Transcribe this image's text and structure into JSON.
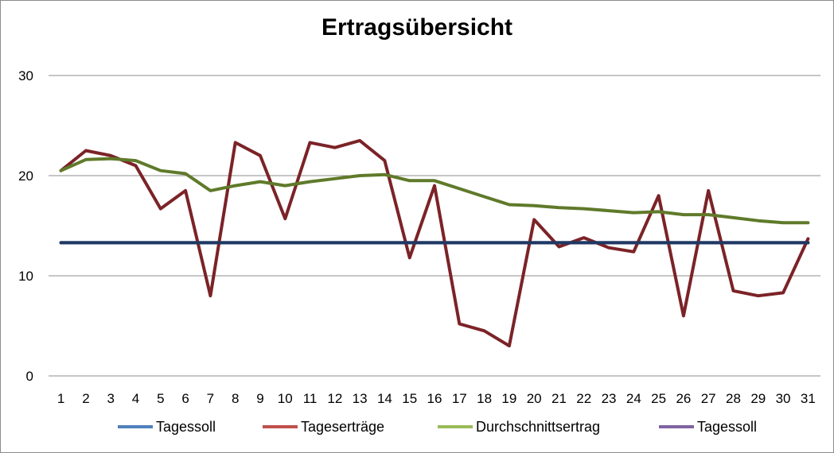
{
  "chart_data": {
    "type": "line",
    "title": "Ertragsübersicht",
    "xlabel": "",
    "ylabel": "",
    "categories": [
      "1",
      "2",
      "3",
      "4",
      "5",
      "6",
      "7",
      "8",
      "9",
      "10",
      "11",
      "12",
      "13",
      "14",
      "15",
      "16",
      "17",
      "18",
      "19",
      "20",
      "21",
      "22",
      "23",
      "24",
      "25",
      "26",
      "27",
      "28",
      "29",
      "30",
      "31"
    ],
    "ylim": [
      0,
      30
    ],
    "yticks": [
      "0",
      "10",
      "20",
      "30"
    ],
    "grid": true,
    "legend_position": "bottom",
    "series": [
      {
        "name": "Tagessoll",
        "color": "#4f81bd",
        "line_color": "#1f3864",
        "values": [
          13.3,
          13.3,
          13.3,
          13.3,
          13.3,
          13.3,
          13.3,
          13.3,
          13.3,
          13.3,
          13.3,
          13.3,
          13.3,
          13.3,
          13.3,
          13.3,
          13.3,
          13.3,
          13.3,
          13.3,
          13.3,
          13.3,
          13.3,
          13.3,
          13.3,
          13.3,
          13.3,
          13.3,
          13.3,
          13.3,
          13.3
        ]
      },
      {
        "name": "Tageserträge",
        "color": "#c0504d",
        "line_color": "#7b2327",
        "values": [
          20.5,
          22.5,
          22.0,
          21.0,
          16.7,
          18.5,
          8.0,
          23.3,
          22.0,
          15.7,
          23.3,
          22.8,
          23.5,
          21.5,
          11.8,
          19.0,
          5.2,
          4.5,
          3.0,
          15.6,
          12.9,
          13.8,
          12.8,
          12.4,
          18.0,
          6.0,
          18.5,
          8.5,
          8.0,
          8.3,
          13.7
        ]
      },
      {
        "name": "Durchschnittsertrag",
        "color": "#9bbb59",
        "line_color": "#5f7a2a",
        "values": [
          20.5,
          21.6,
          21.7,
          21.5,
          20.5,
          20.2,
          18.5,
          19.0,
          19.4,
          19.0,
          19.4,
          19.7,
          20.0,
          20.1,
          19.5,
          19.5,
          18.7,
          17.9,
          17.1,
          17.0,
          16.8,
          16.7,
          16.5,
          16.3,
          16.4,
          16.1,
          16.1,
          15.8,
          15.5,
          15.3,
          15.3
        ]
      },
      {
        "name": "Tagessoll",
        "color": "#8064a2",
        "line_color": "#1f3864",
        "values": [
          13.3,
          13.3,
          13.3,
          13.3,
          13.3,
          13.3,
          13.3,
          13.3,
          13.3,
          13.3,
          13.3,
          13.3,
          13.3,
          13.3,
          13.3,
          13.3,
          13.3,
          13.3,
          13.3,
          13.3,
          13.3,
          13.3,
          13.3,
          13.3,
          13.3,
          13.3,
          13.3,
          13.3,
          13.3,
          13.3,
          13.3
        ]
      }
    ]
  }
}
